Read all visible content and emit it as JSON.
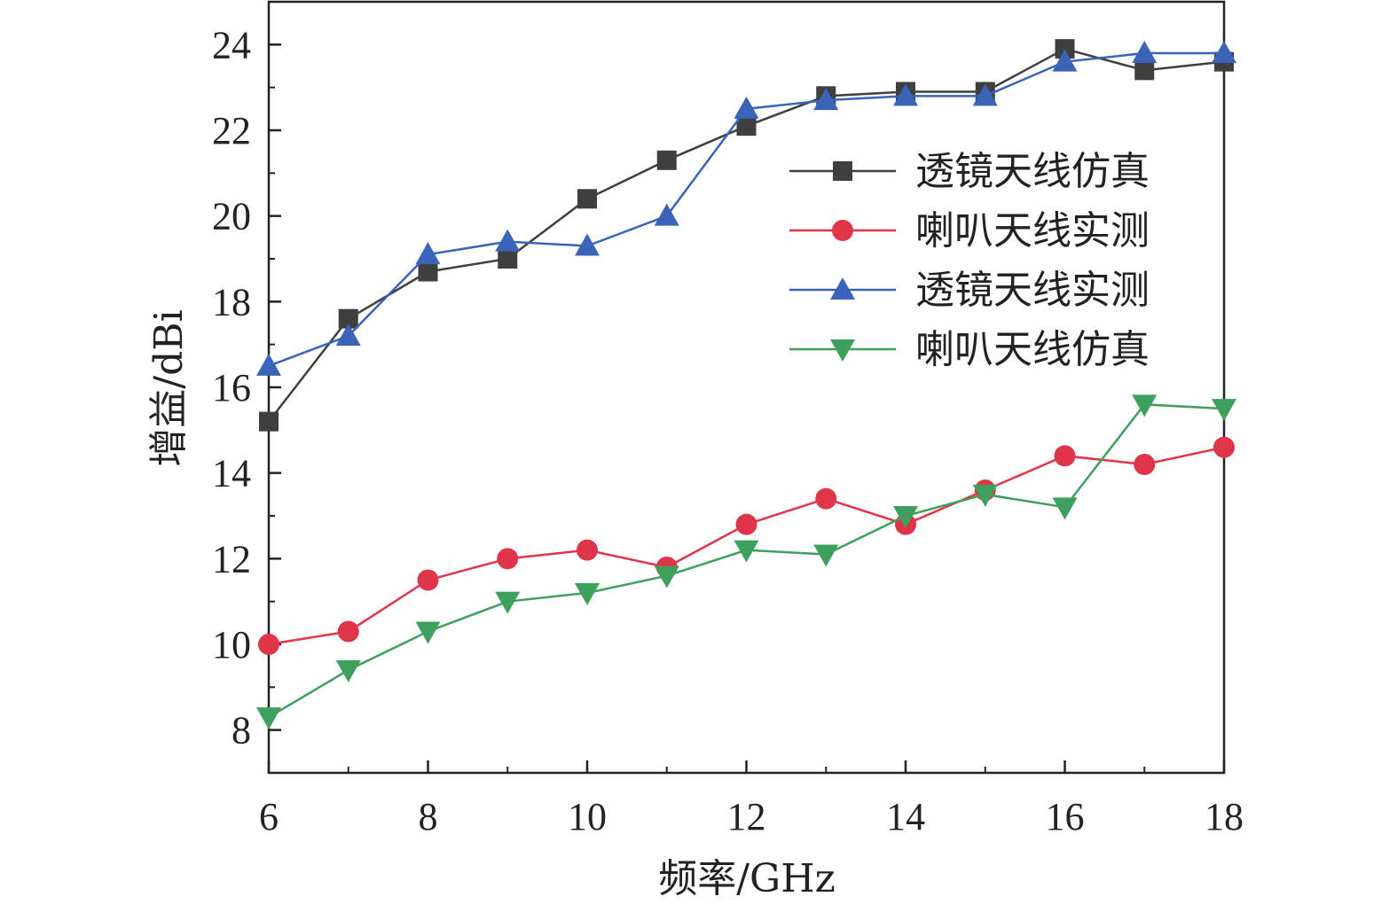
{
  "chart_data": {
    "type": "line",
    "xlabel": "频率/GHz",
    "ylabel": "增益/dBi",
    "xlim": [
      6,
      18
    ],
    "ylim": [
      7,
      25
    ],
    "xticks": [
      6,
      8,
      10,
      12,
      14,
      16,
      18
    ],
    "yticks": [
      8,
      10,
      12,
      14,
      16,
      18,
      20,
      22,
      24
    ],
    "grid": false,
    "legend_position": "upper-right",
    "x": [
      6,
      7,
      8,
      9,
      10,
      11,
      12,
      13,
      14,
      15,
      16,
      17,
      18
    ],
    "series": [
      {
        "name": "透镜天线仿真",
        "color": "#3f3f3f",
        "marker": "square",
        "values": [
          15.2,
          17.6,
          18.7,
          19.0,
          20.4,
          21.3,
          22.1,
          22.8,
          22.9,
          22.9,
          23.9,
          23.4,
          23.6
        ]
      },
      {
        "name": "喇叭天线实测",
        "color": "#e0344a",
        "marker": "circle",
        "values": [
          10.0,
          10.3,
          11.5,
          12.0,
          12.2,
          11.8,
          12.8,
          13.4,
          12.8,
          13.6,
          14.4,
          14.2,
          14.6
        ]
      },
      {
        "name": "透镜天线实测",
        "color": "#3a64b8",
        "marker": "triangle-up",
        "values": [
          16.5,
          17.2,
          19.1,
          19.4,
          19.3,
          20.0,
          22.5,
          22.7,
          22.8,
          22.8,
          23.6,
          23.8,
          23.8
        ]
      },
      {
        "name": "喇叭天线仿真",
        "color": "#3da05c",
        "marker": "triangle-down",
        "values": [
          8.3,
          9.4,
          10.3,
          11.0,
          11.2,
          11.6,
          12.2,
          12.1,
          13.0,
          13.5,
          13.2,
          15.6,
          15.5
        ]
      }
    ]
  }
}
